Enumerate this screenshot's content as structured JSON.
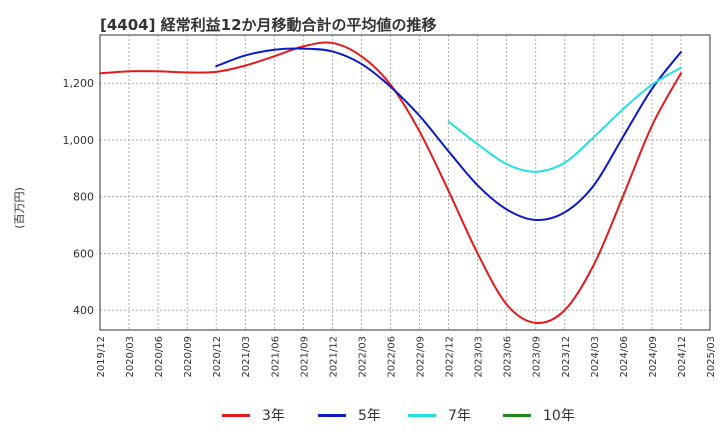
{
  "title": "[4404]  経常利益12か月移動合計の平均値の推移",
  "chart_data": {
    "type": "line",
    "title": "[4404]  経常利益12か月移動合計の平均値の推移",
    "ylabel": "(百万円)",
    "xlabel": "",
    "ylim": [
      330,
      1370
    ],
    "yticks": [
      400,
      600,
      800,
      1000,
      1200
    ],
    "ytick_labels": [
      "400",
      "600",
      "800",
      "1,000",
      "1,200"
    ],
    "x_tick_labels": [
      "2019/12",
      "2020/03",
      "2020/06",
      "2020/09",
      "2020/12",
      "2021/03",
      "2021/06",
      "2021/09",
      "2021/12",
      "2022/03",
      "2022/06",
      "2022/09",
      "2022/12",
      "2023/03",
      "2023/06",
      "2023/09",
      "2023/12",
      "2024/03",
      "2024/06",
      "2024/09",
      "2024/12",
      "2025/03"
    ],
    "grid": true,
    "legend_position": "bottom",
    "series": [
      {
        "name": "3年",
        "color": "#e31a1c",
        "x": [
          "2019/12",
          "2020/03",
          "2020/06",
          "2020/09",
          "2020/12",
          "2021/03",
          "2021/06",
          "2021/09",
          "2021/12",
          "2022/03",
          "2022/06",
          "2022/09",
          "2022/12",
          "2023/03",
          "2023/06",
          "2023/09",
          "2023/12",
          "2024/03",
          "2024/06",
          "2024/09",
          "2024/12"
        ],
        "values": [
          1235,
          1242,
          1242,
          1238,
          1240,
          1262,
          1295,
          1330,
          1342,
          1295,
          1195,
          1030,
          820,
          600,
          420,
          355,
          400,
          560,
          800,
          1050,
          1235
        ]
      },
      {
        "name": "5年",
        "color": "#0b1ac9",
        "x": [
          "2020/12",
          "2021/03",
          "2021/06",
          "2021/09",
          "2021/12",
          "2022/03",
          "2022/06",
          "2022/09",
          "2022/12",
          "2023/03",
          "2023/06",
          "2023/09",
          "2023/12",
          "2024/03",
          "2024/06",
          "2024/09",
          "2024/12"
        ],
        "values": [
          1260,
          1298,
          1318,
          1322,
          1312,
          1268,
          1188,
          1085,
          960,
          840,
          755,
          718,
          745,
          840,
          1010,
          1180,
          1310
        ]
      },
      {
        "name": "7年",
        "color": "#22e1e1",
        "x": [
          "2022/12",
          "2023/03",
          "2023/06",
          "2023/09",
          "2023/12",
          "2024/03",
          "2024/06",
          "2024/09",
          "2024/12"
        ],
        "values": [
          1065,
          985,
          915,
          888,
          920,
          1010,
          1108,
          1195,
          1255
        ]
      },
      {
        "name": "10年",
        "color": "#1a8a1a",
        "x": [],
        "values": []
      }
    ]
  }
}
